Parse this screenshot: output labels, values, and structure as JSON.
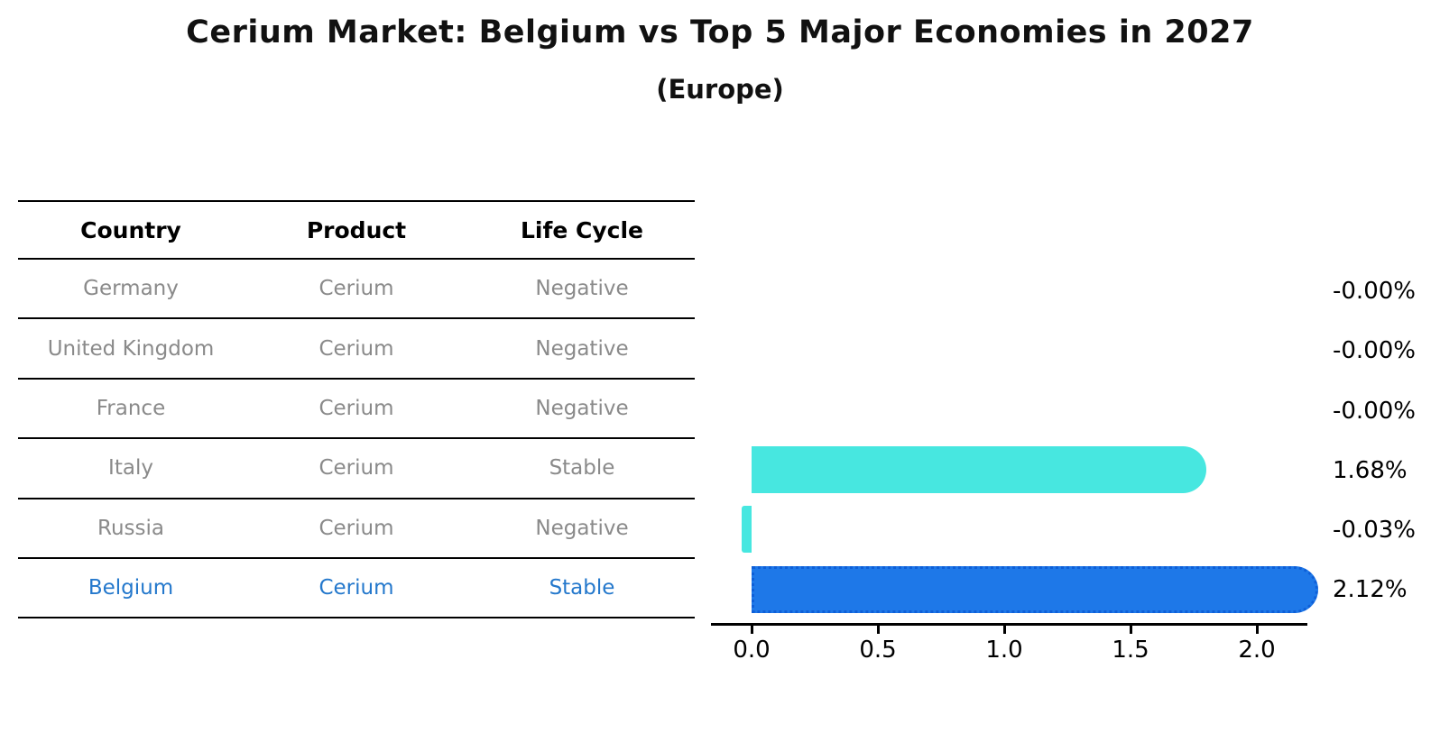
{
  "title": "Cerium Market: Belgium vs Top 5 Major Economies in 2027",
  "subtitle": "(Europe)",
  "table": {
    "headers": [
      "Country",
      "Product",
      "Life Cycle"
    ],
    "rows": [
      {
        "country": "Germany",
        "product": "Cerium",
        "life_cycle": "Negative"
      },
      {
        "country": "United Kingdom",
        "product": "Cerium",
        "life_cycle": "Negative"
      },
      {
        "country": "France",
        "product": "Cerium",
        "life_cycle": "Negative"
      },
      {
        "country": "Italy",
        "product": "Cerium",
        "life_cycle": "Stable"
      },
      {
        "country": "Russia",
        "product": "Cerium",
        "life_cycle": "Negative"
      },
      {
        "country": "Belgium",
        "product": "Cerium",
        "life_cycle": "Stable"
      }
    ],
    "highlight_row": "Belgium"
  },
  "chart_data": {
    "type": "bar",
    "orientation": "horizontal",
    "title": "Cerium Market: Belgium vs Top 5 Major Economies in 2027",
    "subtitle": "(Europe)",
    "categories": [
      "Germany",
      "United Kingdom",
      "France",
      "Italy",
      "Russia",
      "Belgium"
    ],
    "values": [
      -0.0,
      -0.0,
      -0.0,
      1.68,
      -0.03,
      2.12
    ],
    "value_labels": [
      "-0.00%",
      "-0.00%",
      "-0.00%",
      "1.68%",
      "-0.03%",
      "2.12%"
    ],
    "x_ticks": [
      0.0,
      0.5,
      1.0,
      1.5,
      2.0
    ],
    "x_tick_labels": [
      "0.0",
      "0.5",
      "1.0",
      "1.5",
      "2.0"
    ],
    "xlim": [
      -0.16,
      2.2
    ],
    "grid": false,
    "legend": "none",
    "highlight_index": 5
  },
  "colors": {
    "bar_default": "#47e7e0",
    "bar_highlight": "#1e78e8",
    "bar_highlight_border": "#0e5fd8",
    "row_text": "#8a8a8a",
    "highlight_text": "#2478cc",
    "header_text": "#000000",
    "label_text": "#000000"
  }
}
